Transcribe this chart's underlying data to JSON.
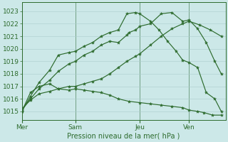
{
  "bg_color": "#cce8e8",
  "grid_color": "#aacccc",
  "line_color": "#2d6b2d",
  "tick_label_color": "#2d6b2d",
  "xlabel": "Pression niveau de la mer( hPa )",
  "ylim": [
    1014.3,
    1023.7
  ],
  "yticks": [
    1015,
    1016,
    1017,
    1018,
    1019,
    1020,
    1021,
    1022,
    1023
  ],
  "xtick_labels": [
    "Mer",
    "Sam",
    "Jeu",
    "Ven"
  ],
  "xtick_positions": [
    0,
    2.5,
    5.5,
    7.8
  ],
  "xmin": 0,
  "xmax": 9.5,
  "lines": [
    {
      "x": [
        0,
        0.4,
        0.8,
        1.3,
        1.7,
        2.2,
        2.5,
        2.9,
        3.3,
        3.7,
        4.1,
        4.5,
        4.9,
        5.3,
        5.5,
        6.0,
        6.5,
        7.0,
        7.5,
        7.8,
        8.3,
        8.8,
        9.3
      ],
      "y": [
        1015.2,
        1015.9,
        1016.4,
        1016.6,
        1016.8,
        1017.0,
        1017.0,
        1017.2,
        1017.4,
        1017.6,
        1018.0,
        1018.5,
        1019.0,
        1019.4,
        1019.6,
        1020.3,
        1021.0,
        1021.6,
        1022.0,
        1022.2,
        1021.9,
        1021.5,
        1021.0
      ]
    },
    {
      "x": [
        0,
        0.4,
        0.8,
        1.3,
        1.7,
        2.2,
        2.5,
        2.9,
        3.3,
        3.7,
        4.1,
        4.5,
        4.9,
        5.0,
        5.3,
        5.5,
        6.0,
        6.5,
        7.0,
        7.5,
        7.8,
        8.2,
        8.6,
        9.0,
        9.3
      ],
      "y": [
        1015.1,
        1016.0,
        1016.8,
        1017.5,
        1018.2,
        1018.8,
        1019.0,
        1019.5,
        1019.8,
        1020.3,
        1020.6,
        1020.5,
        1021.1,
        1021.3,
        1021.5,
        1021.8,
        1022.0,
        1022.8,
        1022.9,
        1022.2,
        1022.3,
        1021.6,
        1020.5,
        1019.0,
        1018.0
      ]
    },
    {
      "x": [
        0,
        0.4,
        0.8,
        1.3,
        1.7,
        2.2,
        2.5,
        2.9,
        3.3,
        3.7,
        4.1,
        4.5,
        4.9,
        5.3,
        5.5,
        6.0,
        6.4,
        6.8,
        7.2,
        7.5,
        7.8,
        8.2,
        8.6,
        9.0,
        9.3
      ],
      "y": [
        1015.0,
        1016.2,
        1017.3,
        1018.3,
        1019.5,
        1019.7,
        1019.8,
        1020.2,
        1020.5,
        1021.0,
        1021.3,
        1021.5,
        1022.8,
        1022.9,
        1022.8,
        1022.2,
        1021.5,
        1020.6,
        1019.8,
        1019.1,
        1018.9,
        1018.5,
        1016.5,
        1016.0,
        1015.0
      ]
    },
    {
      "x": [
        0,
        0.4,
        0.8,
        1.3,
        1.7,
        2.2,
        2.5,
        2.9,
        3.3,
        3.7,
        4.1,
        4.5,
        5.0,
        5.5,
        6.0,
        6.5,
        7.0,
        7.5,
        7.8,
        8.2,
        8.5,
        8.9,
        9.3
      ],
      "y": [
        1015.0,
        1016.5,
        1017.0,
        1017.2,
        1016.8,
        1016.7,
        1016.8,
        1016.7,
        1016.6,
        1016.5,
        1016.3,
        1016.0,
        1015.8,
        1015.7,
        1015.6,
        1015.5,
        1015.4,
        1015.3,
        1015.1,
        1015.0,
        1014.9,
        1014.7,
        1014.7
      ]
    }
  ]
}
